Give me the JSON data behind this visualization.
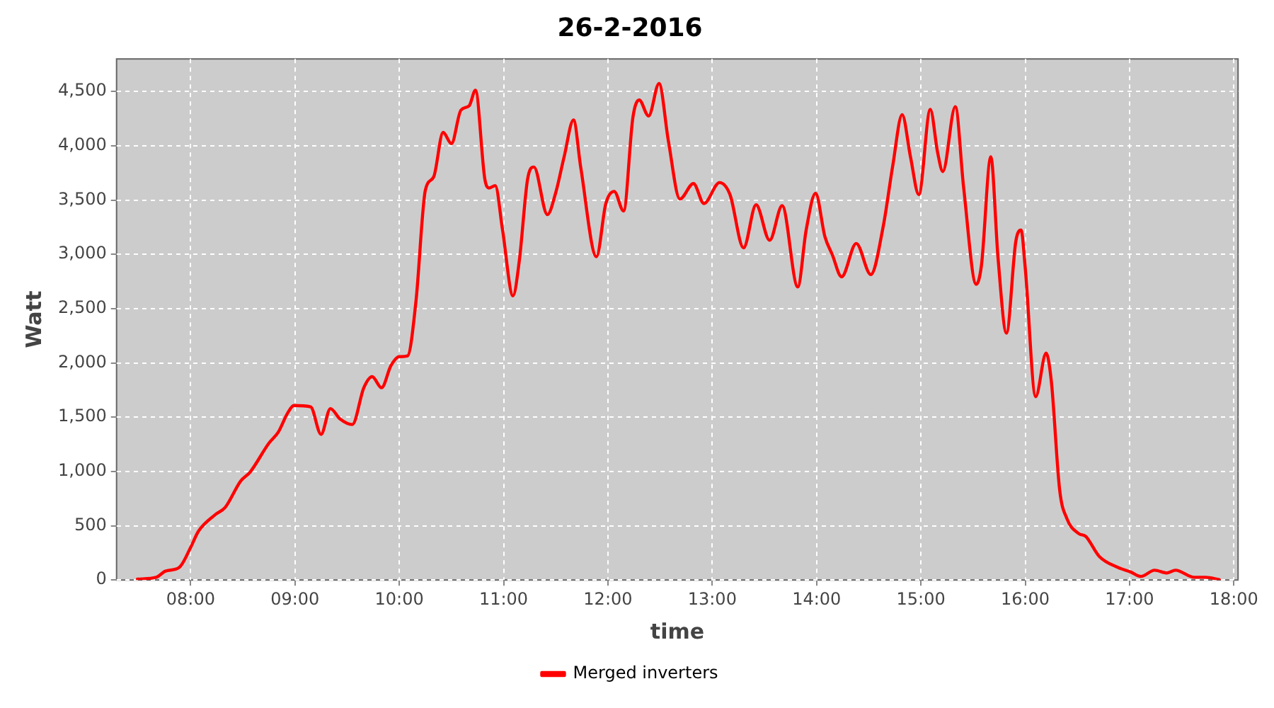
{
  "chart_data": {
    "type": "line",
    "title": "26-2-2016",
    "xlabel": "time",
    "ylabel": "Watt",
    "x": [
      7.49,
      7.67,
      7.76,
      7.89,
      8.0,
      8.075,
      8.24,
      8.33,
      8.48,
      8.57,
      8.75,
      8.84,
      8.93,
      8.99,
      9.15,
      9.25,
      9.34,
      9.43,
      9.55,
      9.66,
      9.74,
      9.83,
      9.92,
      10.0,
      10.08,
      10.16,
      10.25,
      10.33,
      10.42,
      10.5,
      10.59,
      10.67,
      10.73,
      10.82,
      10.86,
      10.92,
      10.99,
      11.09,
      11.15,
      11.23,
      11.29,
      11.42,
      11.5,
      11.58,
      11.67,
      11.74,
      11.89,
      11.98,
      12.06,
      12.15,
      12.24,
      12.3,
      12.39,
      12.49,
      12.58,
      12.69,
      12.82,
      12.92,
      13.07,
      13.17,
      13.3,
      13.42,
      13.55,
      13.67,
      13.82,
      13.9,
      13.99,
      14.08,
      14.15,
      14.24,
      14.38,
      14.52,
      14.64,
      14.73,
      14.82,
      14.9,
      14.98,
      15.09,
      15.16,
      15.21,
      15.33,
      15.41,
      15.53,
      15.58,
      15.67,
      15.74,
      15.82,
      15.91,
      15.96,
      16.0,
      16.1,
      16.2,
      16.25,
      16.33,
      16.4,
      16.51,
      16.58,
      16.71,
      16.89,
      17.01,
      17.11,
      17.24,
      17.36,
      17.44,
      17.62,
      17.73,
      17.86
    ],
    "series": [
      {
        "name": "Merged inverters",
        "color": "#ff0000",
        "values": [
          8,
          25,
          82,
          115,
          300,
          450,
          605,
          667,
          912,
          994,
          1260,
          1362,
          1538,
          1607,
          1595,
          1342,
          1579,
          1485,
          1432,
          1771,
          1873,
          1771,
          1975,
          2057,
          2065,
          2569,
          3591,
          3714,
          4123,
          4020,
          4327,
          4368,
          4511,
          3693,
          3611,
          3632,
          3223,
          2618,
          2937,
          3693,
          3804,
          3366,
          3570,
          3898,
          4237,
          3796,
          2978,
          3468,
          3579,
          3399,
          4266,
          4421,
          4274,
          4573,
          4041,
          3509,
          3652,
          3468,
          3661,
          3550,
          3059,
          3456,
          3129,
          3448,
          2699,
          3223,
          3562,
          3162,
          2998,
          2793,
          3100,
          2814,
          3264,
          3816,
          4286,
          3898,
          3550,
          4335,
          3939,
          3763,
          4360,
          3611,
          2724,
          2896,
          3898,
          2957,
          2274,
          3121,
          3223,
          2875,
          1689,
          2090,
          1832,
          830,
          564,
          429,
          401,
          217,
          115,
          74,
          33,
          90,
          65,
          90,
          25,
          25,
          4
        ]
      }
    ],
    "xlim": [
      7.29,
      18.04
    ],
    "xticks": [
      {
        "value": 8,
        "label": "08:00"
      },
      {
        "value": 9,
        "label": "09:00"
      },
      {
        "value": 10,
        "label": "10:00"
      },
      {
        "value": 11,
        "label": "11:00"
      },
      {
        "value": 12,
        "label": "12:00"
      },
      {
        "value": 13,
        "label": "13:00"
      },
      {
        "value": 14,
        "label": "14:00"
      },
      {
        "value": 15,
        "label": "15:00"
      },
      {
        "value": 16,
        "label": "16:00"
      },
      {
        "value": 17,
        "label": "17:00"
      },
      {
        "value": 18,
        "label": "18:00"
      }
    ],
    "ylim": [
      0,
      4800
    ],
    "yticks": [
      0,
      500,
      {
        "value": 1000,
        "label": "1,000"
      },
      {
        "value": 1500,
        "label": "1,500"
      },
      {
        "value": 2000,
        "label": "2,000"
      },
      {
        "value": 2500,
        "label": "2,500"
      },
      {
        "value": 3000,
        "label": "3,000"
      },
      {
        "value": 3500,
        "label": "3,500"
      },
      {
        "value": 4000,
        "label": "4,000"
      },
      {
        "value": 4500,
        "label": "4,500"
      }
    ],
    "grid": true,
    "legend": "bottom",
    "marker": "none",
    "line_style": "solid"
  }
}
